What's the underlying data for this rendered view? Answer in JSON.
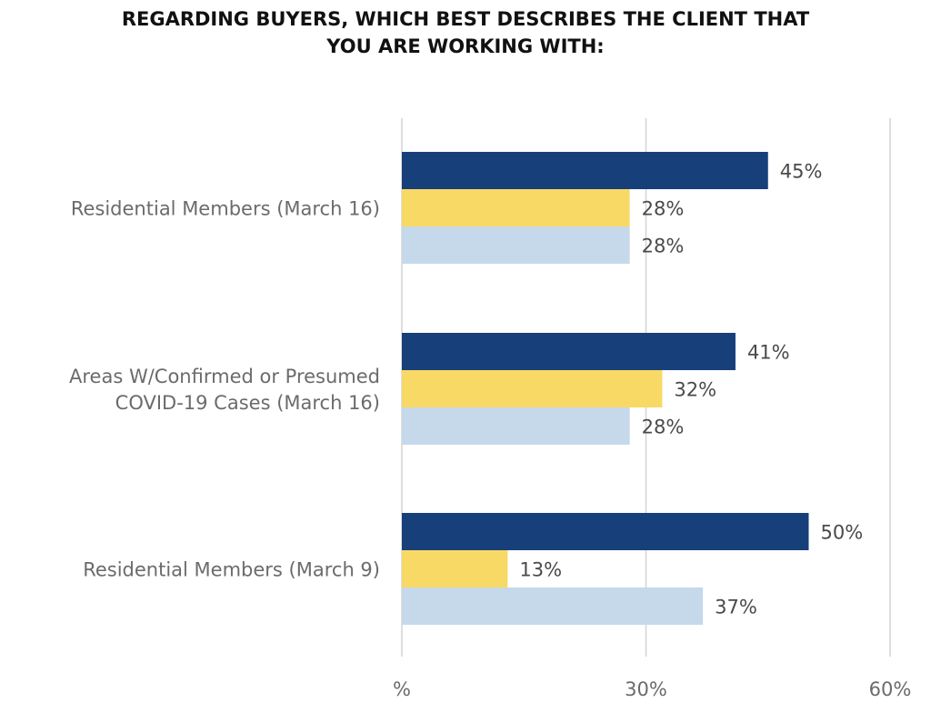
{
  "chart_data": {
    "type": "bar",
    "orientation": "horizontal",
    "title_lines": [
      "REGARDING BUYERS, WHICH BEST DESCRIBES THE CLIENT THAT",
      "YOU ARE WORKING WITH:"
    ],
    "categories": [
      [
        "Residential Members (March 16)"
      ],
      [
        "Areas W/Confirmed or Presumed",
        "COVID-19 Cases (March 16)"
      ],
      [
        "Residential Members (March 9)"
      ]
    ],
    "series": [
      {
        "color": "#173f7a",
        "values": [
          45,
          41,
          50
        ],
        "labels": [
          "45%",
          "41%",
          "50%"
        ]
      },
      {
        "color": "#f9d966",
        "values": [
          28,
          32,
          13
        ],
        "labels": [
          "28%",
          "32%",
          "13%"
        ]
      },
      {
        "color": "#c5d9ea",
        "values": [
          28,
          28,
          37
        ],
        "labels": [
          "28%",
          "28%",
          "37%"
        ]
      }
    ],
    "xlim": [
      0,
      60
    ],
    "ticks": [
      0,
      30,
      60
    ],
    "tick_labels": [
      "%",
      "30%",
      "60%"
    ],
    "grid": true,
    "legend": "none"
  }
}
